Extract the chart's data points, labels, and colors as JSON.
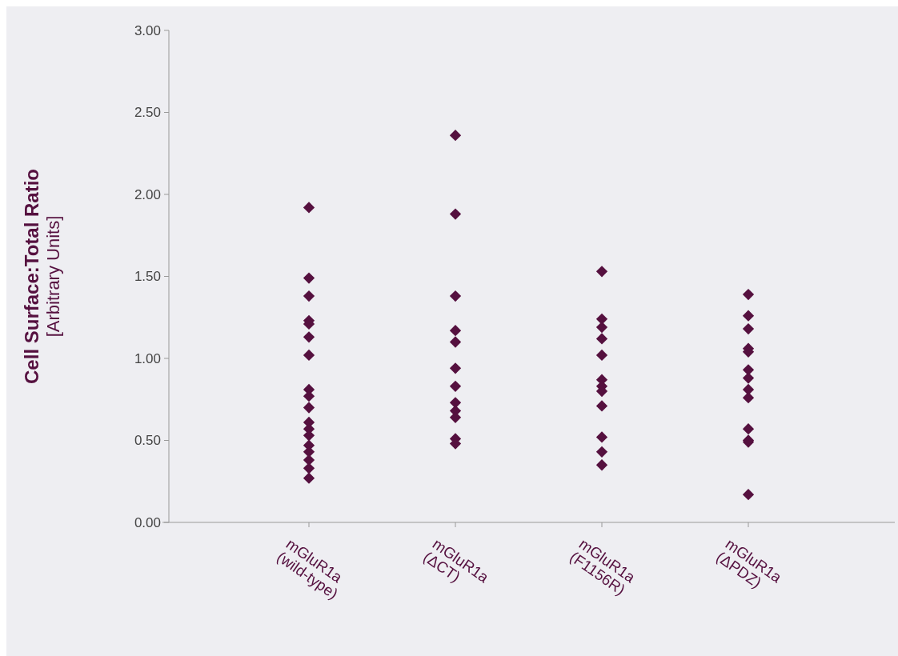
{
  "chart_data": {
    "type": "scatter",
    "ylabel": "Cell Surface:Total Ratio\n[Arbitrary Units]",
    "categories": [
      "mGluR1a\n(wild-type)",
      "mGluR1a\n(ΔCT)",
      "mGluR1a\n(F1156R)",
      "mGluR1a\n(ΔPDZ)"
    ],
    "ylim": [
      0,
      3
    ],
    "yticks": [
      {
        "value": 0,
        "label": "0.00"
      },
      {
        "value": 0.5,
        "label": "0.50"
      },
      {
        "value": 1,
        "label": "1.00"
      },
      {
        "value": 1.5,
        "label": "1.50"
      },
      {
        "value": 2,
        "label": "2.00"
      },
      {
        "value": 2.5,
        "label": "2.50"
      },
      {
        "value": 3,
        "label": "3.00"
      }
    ],
    "grid": false,
    "marker": "diamond",
    "series": [
      {
        "color": "#55103f",
        "x": [
          "mGluR1a\n(wild-type)",
          "mGluR1a\n(wild-type)",
          "mGluR1a\n(wild-type)",
          "mGluR1a\n(wild-type)",
          "mGluR1a\n(wild-type)",
          "mGluR1a\n(wild-type)",
          "mGluR1a\n(wild-type)",
          "mGluR1a\n(wild-type)",
          "mGluR1a\n(wild-type)",
          "mGluR1a\n(wild-type)",
          "mGluR1a\n(wild-type)",
          "mGluR1a\n(wild-type)",
          "mGluR1a\n(wild-type)",
          "mGluR1a\n(wild-type)",
          "mGluR1a\n(wild-type)",
          "mGluR1a\n(wild-type)",
          "mGluR1a\n(wild-type)",
          "mGluR1a\n(wild-type)"
        ],
        "values": [
          1.92,
          1.49,
          1.38,
          1.23,
          1.21,
          1.13,
          1.02,
          0.81,
          0.77,
          0.7,
          0.61,
          0.57,
          0.53,
          0.47,
          0.43,
          0.38,
          0.33,
          0.27
        ]
      },
      {
        "color": "#55103f",
        "x": [
          "mGluR1a\n(ΔCT)",
          "mGluR1a\n(ΔCT)",
          "mGluR1a\n(ΔCT)",
          "mGluR1a\n(ΔCT)",
          "mGluR1a\n(ΔCT)",
          "mGluR1a\n(ΔCT)",
          "mGluR1a\n(ΔCT)",
          "mGluR1a\n(ΔCT)",
          "mGluR1a\n(ΔCT)",
          "mGluR1a\n(ΔCT)",
          "mGluR1a\n(ΔCT)",
          "mGluR1a\n(ΔCT)"
        ],
        "values": [
          2.36,
          1.88,
          1.38,
          1.17,
          1.1,
          0.94,
          0.83,
          0.73,
          0.68,
          0.64,
          0.51,
          0.48
        ]
      },
      {
        "color": "#55103f",
        "x": [
          "mGluR1a\n(F1156R)",
          "mGluR1a\n(F1156R)",
          "mGluR1a\n(F1156R)",
          "mGluR1a\n(F1156R)",
          "mGluR1a\n(F1156R)",
          "mGluR1a\n(F1156R)",
          "mGluR1a\n(F1156R)",
          "mGluR1a\n(F1156R)",
          "mGluR1a\n(F1156R)",
          "mGluR1a\n(F1156R)",
          "mGluR1a\n(F1156R)",
          "mGluR1a\n(F1156R)"
        ],
        "values": [
          1.53,
          1.24,
          1.19,
          1.12,
          1.02,
          0.87,
          0.83,
          0.8,
          0.71,
          0.52,
          0.43,
          0.35
        ]
      },
      {
        "color": "#55103f",
        "x": [
          "mGluR1a\n(ΔPDZ)",
          "mGluR1a\n(ΔPDZ)",
          "mGluR1a\n(ΔPDZ)",
          "mGluR1a\n(ΔPDZ)",
          "mGluR1a\n(ΔPDZ)",
          "mGluR1a\n(ΔPDZ)",
          "mGluR1a\n(ΔPDZ)",
          "mGluR1a\n(ΔPDZ)",
          "mGluR1a\n(ΔPDZ)",
          "mGluR1a\n(ΔPDZ)",
          "mGluR1a\n(ΔPDZ)",
          "mGluR1a\n(ΔPDZ)",
          "mGluR1a\n(ΔPDZ)"
        ],
        "values": [
          1.39,
          1.26,
          1.18,
          1.06,
          1.04,
          0.93,
          0.88,
          0.81,
          0.76,
          0.57,
          0.5,
          0.49,
          0.17
        ]
      }
    ]
  }
}
